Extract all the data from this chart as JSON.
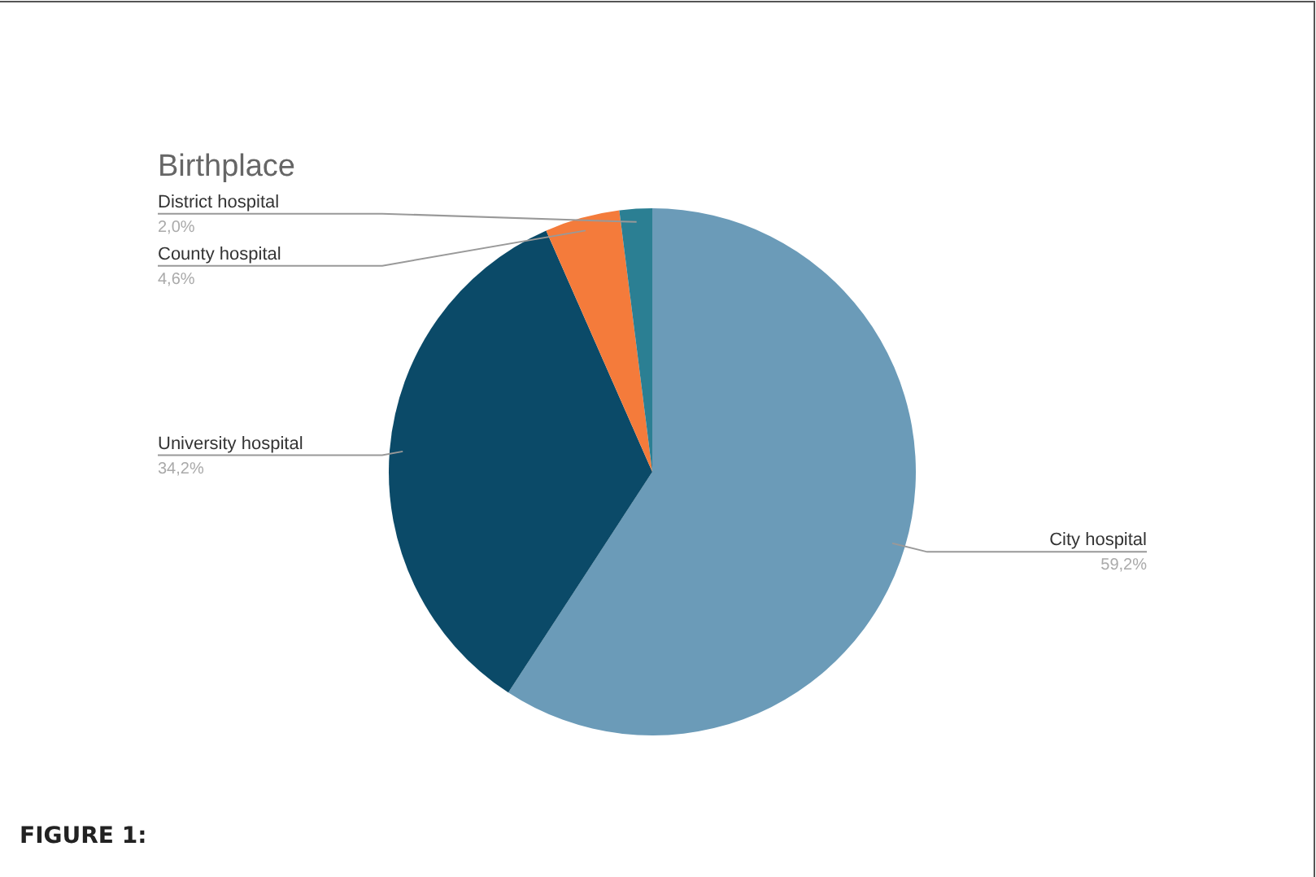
{
  "chart_data": {
    "type": "pie",
    "title": "Birthplace",
    "categories": [
      "City hospital",
      "University hospital",
      "County hospital",
      "District hospital"
    ],
    "values": [
      59.2,
      34.2,
      4.6,
      2.0
    ],
    "colors": [
      "#6b9bb8",
      "#0b4a68",
      "#f47b3b",
      "#2b7f93"
    ],
    "value_labels": [
      "59,2%",
      "34,2%",
      "4,6%",
      "2,0%"
    ],
    "annotations": [
      "FIGURE 1:"
    ]
  }
}
